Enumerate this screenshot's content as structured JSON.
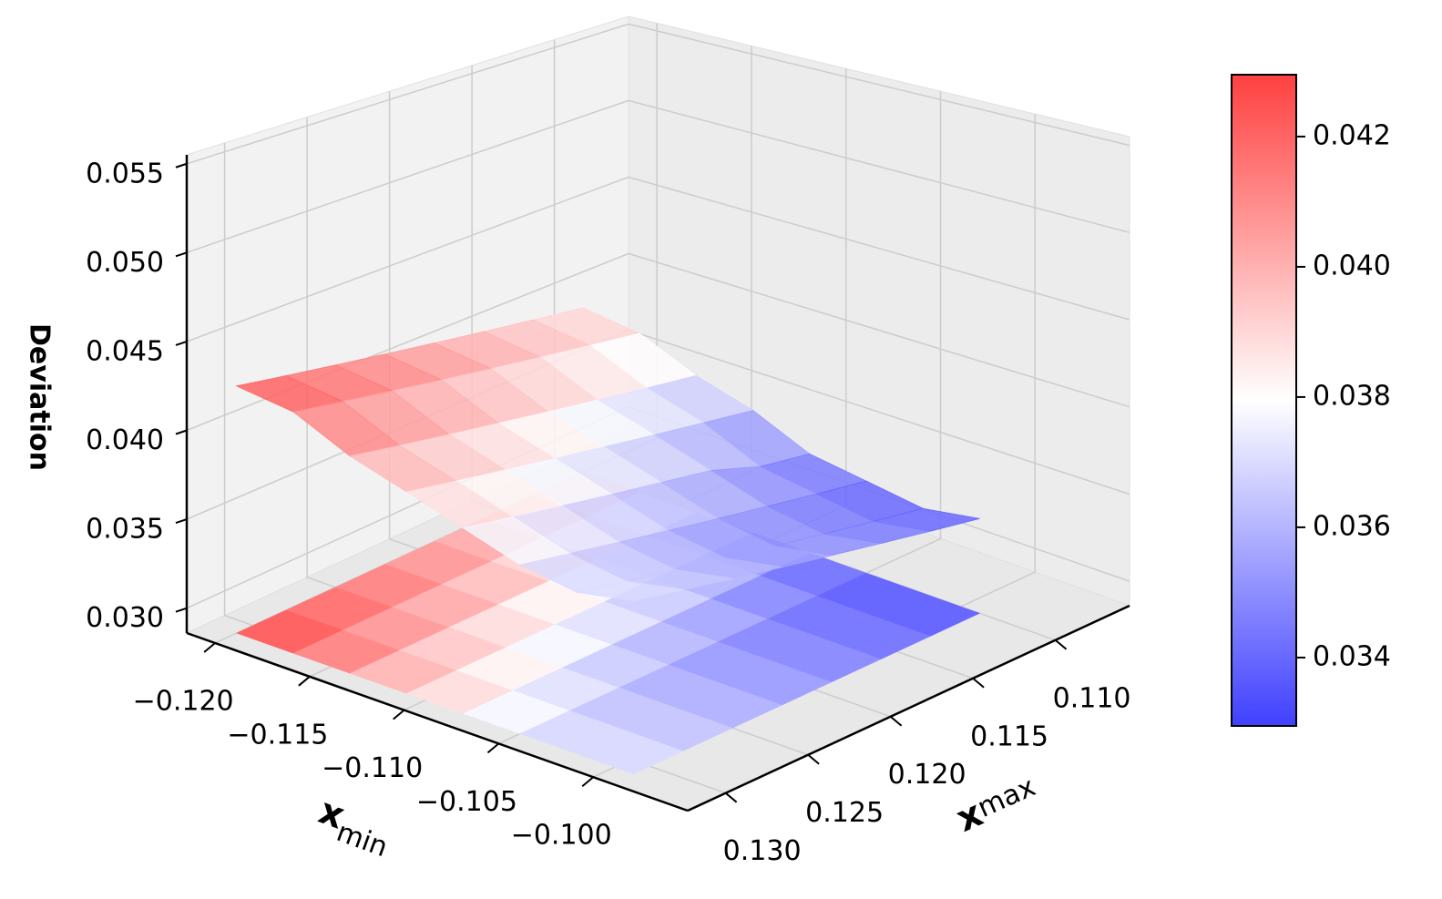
{
  "chart_data": {
    "type": "surface3d",
    "xlabel": {
      "text": "x",
      "subscript": "min"
    },
    "ylabel": {
      "text": "x",
      "subscript": "max"
    },
    "zlabel": "Deviation",
    "x": [
      -0.12,
      -0.117,
      -0.114,
      -0.111,
      -0.108,
      -0.105,
      -0.102,
      -0.099
    ],
    "y": [
      0.11,
      0.113,
      0.116,
      0.119,
      0.122,
      0.125,
      0.128,
      0.131
    ],
    "z": [
      [
        0.039,
        0.0385,
        0.037,
        0.036,
        0.0345,
        0.034,
        0.0335,
        0.034
      ],
      [
        0.0395,
        0.039,
        0.0375,
        0.0365,
        0.035,
        0.0345,
        0.034,
        0.0345
      ],
      [
        0.04,
        0.0395,
        0.038,
        0.037,
        0.036,
        0.035,
        0.0345,
        0.035
      ],
      [
        0.0405,
        0.04,
        0.0385,
        0.0375,
        0.0365,
        0.0355,
        0.035,
        0.0355
      ],
      [
        0.041,
        0.0405,
        0.039,
        0.038,
        0.037,
        0.036,
        0.0355,
        0.036
      ],
      [
        0.0415,
        0.041,
        0.0395,
        0.0385,
        0.0375,
        0.0365,
        0.036,
        0.0365
      ],
      [
        0.042,
        0.0415,
        0.04,
        0.039,
        0.038,
        0.037,
        0.0365,
        0.037
      ],
      [
        0.0425,
        0.042,
        0.0405,
        0.0395,
        0.0385,
        0.0375,
        0.037,
        0.0375
      ]
    ],
    "xlim": [
      -0.1215,
      -0.095
    ],
    "ylim": [
      0.1055,
      0.1323
    ],
    "zlim": [
      0.0286,
      0.0555
    ],
    "xticks": [
      {
        "value": -0.12,
        "label": "−0.120"
      },
      {
        "value": -0.115,
        "label": "−0.115"
      },
      {
        "value": -0.11,
        "label": "−0.110"
      },
      {
        "value": -0.105,
        "label": "−0.105"
      },
      {
        "value": -0.1,
        "label": "−0.100"
      }
    ],
    "yticks": [
      {
        "value": 0.11,
        "label": "0.110"
      },
      {
        "value": 0.115,
        "label": "0.115"
      },
      {
        "value": 0.12,
        "label": "0.120"
      },
      {
        "value": 0.125,
        "label": "0.125"
      },
      {
        "value": 0.13,
        "label": "0.130"
      }
    ],
    "zticks": [
      {
        "value": 0.03,
        "label": "0.030"
      },
      {
        "value": 0.035,
        "label": "0.035"
      },
      {
        "value": 0.04,
        "label": "0.040"
      },
      {
        "value": 0.045,
        "label": "0.045"
      },
      {
        "value": 0.05,
        "label": "0.050"
      },
      {
        "value": 0.055,
        "label": "0.055"
      }
    ],
    "colormap": [
      "#4040ff",
      "#ffffff",
      "#ff4040"
    ],
    "clim": [
      0.03295,
      0.04295
    ],
    "cticks": [
      {
        "value": 0.034,
        "label": "0.034"
      },
      {
        "value": 0.036,
        "label": "0.036"
      },
      {
        "value": 0.038,
        "label": "0.038"
      },
      {
        "value": 0.04,
        "label": "0.040"
      },
      {
        "value": 0.042,
        "label": "0.042"
      }
    ],
    "grid": true
  }
}
